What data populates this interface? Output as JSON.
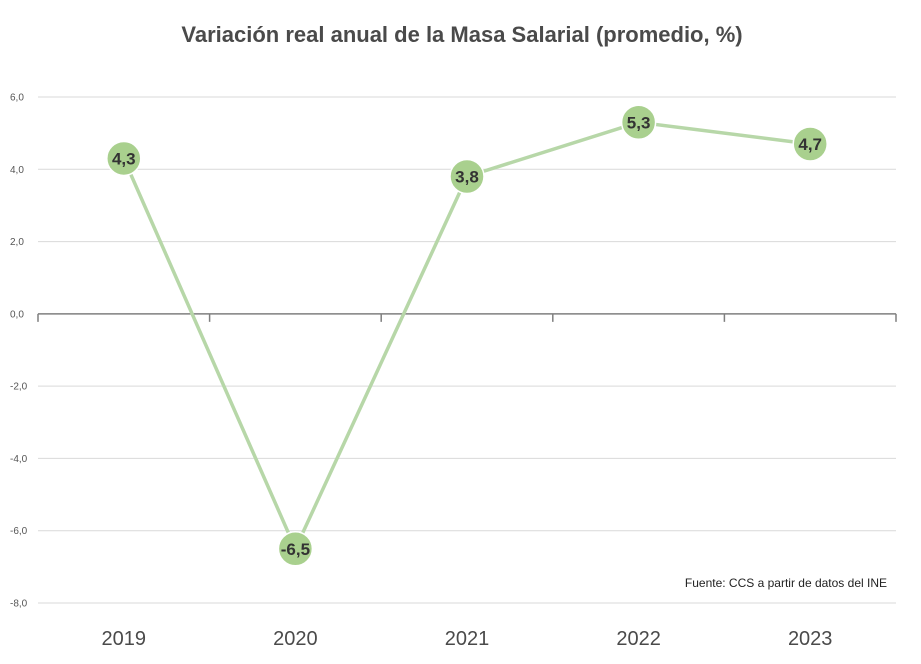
{
  "chart_data": {
    "type": "line",
    "title": "Variación real anual de la Masa Salarial (promedio, %)",
    "categories": [
      "2019",
      "2020",
      "2021",
      "2022",
      "2023"
    ],
    "series": [
      {
        "values": [
          4.3,
          -6.5,
          3.8,
          5.3,
          4.7
        ]
      }
    ],
    "data_labels": [
      "4,3",
      "-6,5",
      "3,8",
      "5,3",
      "4,7"
    ],
    "ylim": [
      -8,
      6
    ],
    "yticks": [
      6,
      4,
      2,
      0,
      -2,
      -4,
      -6,
      -8
    ],
    "ytick_labels": [
      "6,0",
      "4,0",
      "2,0",
      "0,0",
      "-2,0",
      "-4,0",
      "-6,0",
      "-8,0"
    ],
    "grid": true,
    "source": "Fuente: CCS a partir de datos del INE",
    "colors": {
      "line": "#b7d7a8",
      "marker": "#a9d08e",
      "grid": "#d9d9d9",
      "axis": "#7f7f7f",
      "text": "#4a4a4a"
    }
  }
}
